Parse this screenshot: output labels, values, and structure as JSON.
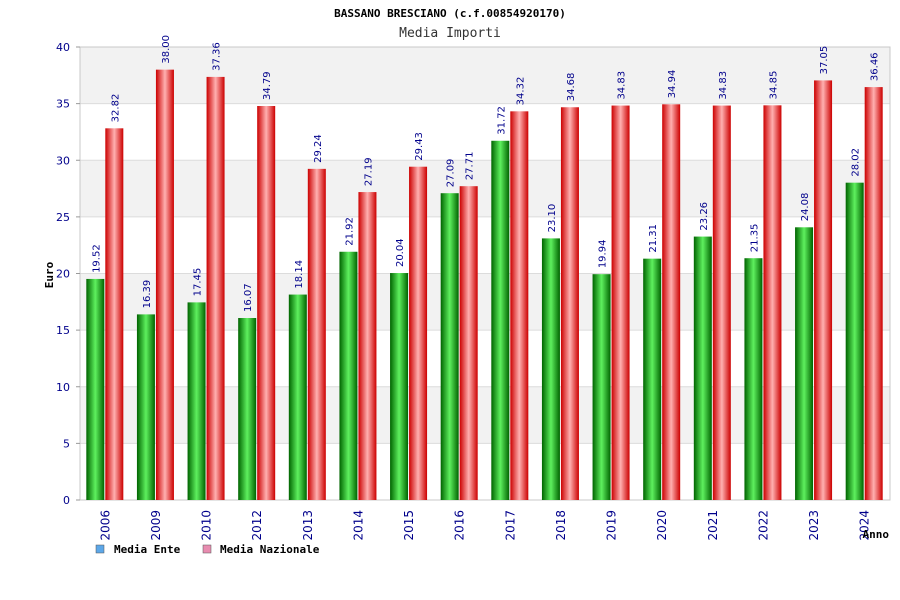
{
  "colors": {
    "green_light": "#5ef05e",
    "green_mid": "#10c010",
    "green_dark": "#006400",
    "red_light": "#ffb0b0",
    "red_mid": "#ff2020",
    "red_dark": "#cc0000",
    "legend_ente": "#5ca7e8",
    "legend_nazionale": "#e88cb0",
    "band": "#f2f2f2",
    "grid": "#dcdcdc"
  },
  "chart_data": {
    "type": "bar",
    "title": "BASSANO BRESCIANO (c.f.00854920170)",
    "subtitle": "Media Importi",
    "xlabel": "Anno",
    "ylabel": "Euro",
    "ylim": [
      0,
      40
    ],
    "yticks": [
      0,
      5,
      10,
      15,
      20,
      25,
      30,
      35,
      40
    ],
    "categories": [
      "2006",
      "2009",
      "2010",
      "2012",
      "2013",
      "2014",
      "2015",
      "2016",
      "2017",
      "2018",
      "2019",
      "2020",
      "2021",
      "2022",
      "2023",
      "2024"
    ],
    "series": [
      {
        "name": "Media Ente",
        "values": [
          19.52,
          16.39,
          17.45,
          16.07,
          18.14,
          21.92,
          20.04,
          27.09,
          31.72,
          23.1,
          19.94,
          21.31,
          23.26,
          21.35,
          24.08,
          28.02
        ],
        "labels": [
          "19.52",
          "16.39",
          "17.45",
          "16.07",
          "18.14",
          "21.92",
          "20.04",
          "27.09",
          "31.72",
          "23.10",
          "19.94",
          "21.31",
          "23.26",
          "21.35",
          "24.08",
          "28.02"
        ]
      },
      {
        "name": "Media Nazionale",
        "values": [
          32.82,
          38.0,
          37.36,
          34.79,
          29.24,
          27.19,
          29.43,
          27.71,
          34.32,
          34.68,
          34.83,
          34.94,
          34.83,
          34.85,
          37.05,
          36.46
        ],
        "labels": [
          "32.82",
          "38.00",
          "37.36",
          "34.79",
          "29.24",
          "27.19",
          "29.43",
          "27.71",
          "34.32",
          "34.68",
          "34.83",
          "34.94",
          "34.83",
          "34.85",
          "37.05",
          "36.46"
        ]
      }
    ],
    "legend": [
      "Media Ente",
      "Media Nazionale"
    ]
  }
}
